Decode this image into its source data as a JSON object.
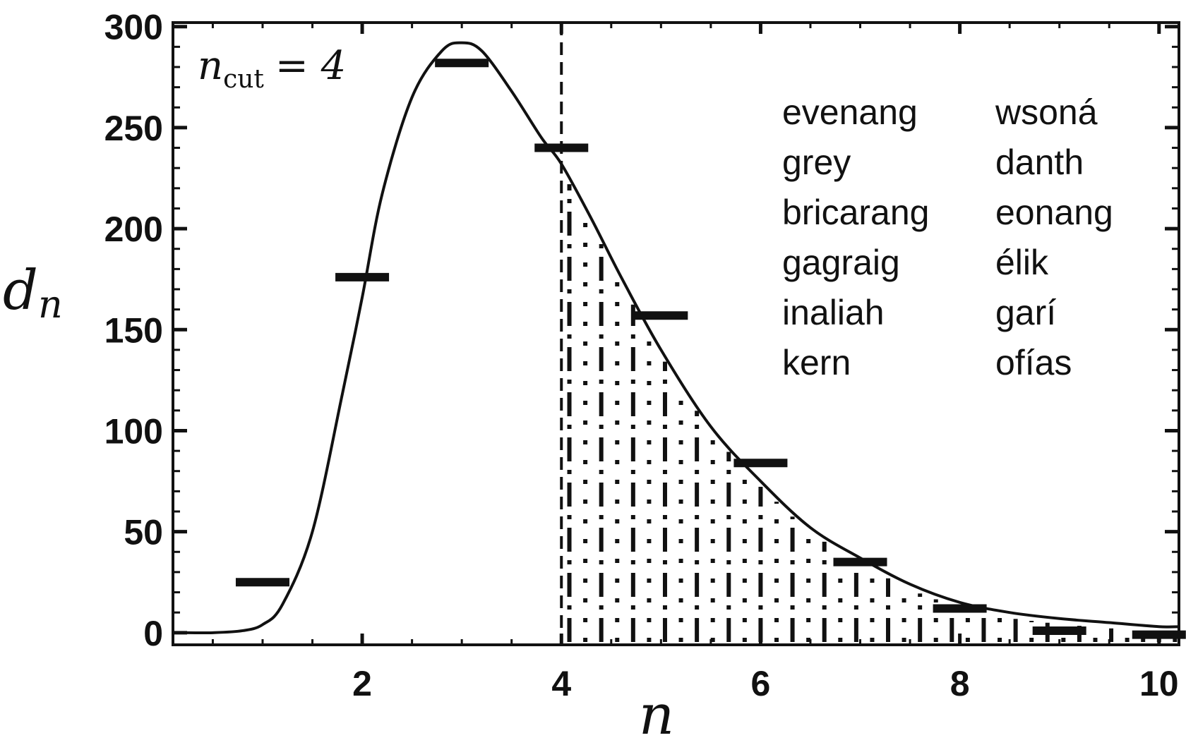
{
  "chart_data": {
    "type": "line",
    "xlabel": "n",
    "ylabel": "d",
    "ylabel_sub": "n",
    "xlim": [
      0.1,
      10.2
    ],
    "ylim": [
      -6,
      302
    ],
    "x_ticks": [
      2,
      4,
      6,
      8,
      10
    ],
    "y_ticks": [
      0,
      50,
      100,
      150,
      200,
      250,
      300
    ],
    "grid": false,
    "annotation": {
      "lhs": "n",
      "lhs_sub": "cut",
      "rhs": "= 4"
    },
    "cutoff_line_x": 4,
    "shaded_region": {
      "from_x": 4,
      "to_x": 10.2,
      "pattern": "vertical dash-dot hatching"
    },
    "series": [
      {
        "kind": "step-markers",
        "x": [
          1,
          2,
          3,
          4,
          5,
          6,
          7,
          8,
          9,
          10
        ],
        "values": [
          25,
          176,
          282,
          240,
          157,
          84,
          35,
          12,
          1,
          -1
        ]
      },
      {
        "kind": "curve",
        "x": [
          0.2,
          0.5,
          0.8,
          1.0,
          1.2,
          1.5,
          1.8,
          2.0,
          2.2,
          2.5,
          2.8,
          3.0,
          3.2,
          3.5,
          3.8,
          4.0,
          4.3,
          4.6,
          5.0,
          5.5,
          6.0,
          6.5,
          7.0,
          7.5,
          8.0,
          8.5,
          9.0,
          9.5,
          10.0,
          10.2
        ],
        "values": [
          0,
          0,
          1,
          4,
          14,
          50,
          118,
          166,
          217,
          265,
          288,
          292,
          288,
          268,
          245,
          232,
          205,
          176,
          140,
          102,
          75,
          52,
          37,
          24,
          15,
          10,
          7,
          5,
          3,
          3
        ]
      }
    ],
    "legend": {
      "placement": "top-right",
      "columns": [
        [
          "evenang",
          "grey",
          "bricarang",
          "gagraig",
          "inaliah",
          "kern"
        ],
        [
          "wsoná",
          "danth",
          "eonang",
          "élik",
          "garí",
          "ofías"
        ]
      ]
    }
  }
}
